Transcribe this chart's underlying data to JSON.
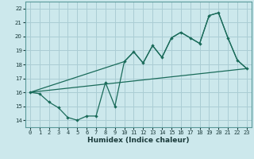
{
  "xlabel": "Humidex (Indice chaleur)",
  "bg_color": "#cce8ec",
  "grid_color": "#aacdd4",
  "line_color": "#1a6b5a",
  "xlim": [
    -0.5,
    23.5
  ],
  "ylim": [
    13.5,
    22.5
  ],
  "xticks": [
    0,
    1,
    2,
    3,
    4,
    5,
    6,
    7,
    8,
    9,
    10,
    11,
    12,
    13,
    14,
    15,
    16,
    17,
    18,
    19,
    20,
    21,
    22,
    23
  ],
  "yticks": [
    14,
    15,
    16,
    17,
    18,
    19,
    20,
    21,
    22
  ],
  "line1_x": [
    0,
    1,
    2,
    3,
    4,
    5,
    6,
    7,
    8,
    9,
    10,
    11,
    12,
    13,
    14,
    15,
    16,
    17,
    18,
    19,
    20,
    21,
    22,
    23
  ],
  "line1_y": [
    16.0,
    15.9,
    15.3,
    14.9,
    14.2,
    14.0,
    14.3,
    14.3,
    16.7,
    15.0,
    18.2,
    18.9,
    18.1,
    19.35,
    18.5,
    19.9,
    20.3,
    19.9,
    19.5,
    21.5,
    21.7,
    19.9,
    18.3,
    17.7
  ],
  "line2_x": [
    0,
    10,
    11,
    12,
    13,
    14,
    15,
    16,
    17,
    18,
    19,
    20,
    21,
    22,
    23
  ],
  "line2_y": [
    16.0,
    18.2,
    18.9,
    18.1,
    19.35,
    18.5,
    19.9,
    20.3,
    19.9,
    19.5,
    21.5,
    21.7,
    19.9,
    18.3,
    17.7
  ],
  "line3_x": [
    0,
    23
  ],
  "line3_y": [
    16.0,
    17.7
  ]
}
